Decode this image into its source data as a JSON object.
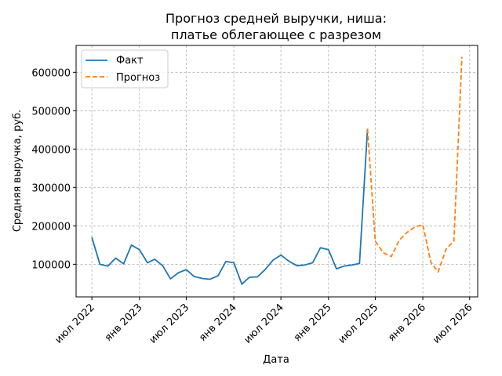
{
  "chart_data": {
    "type": "line",
    "title": [
      "Прогноз средней выручки, ниша:",
      "платье облегающее с разрезом"
    ],
    "xlabel": "Дата",
    "ylabel": "Средняя выручка, руб.",
    "x_ticks": [
      {
        "date": "2022-07-01",
        "label": "июл 2022"
      },
      {
        "date": "2023-01-01",
        "label": "янв 2023"
      },
      {
        "date": "2023-07-01",
        "label": "июл 2023"
      },
      {
        "date": "2024-01-01",
        "label": "янв 2024"
      },
      {
        "date": "2024-07-01",
        "label": "июл 2024"
      },
      {
        "date": "2025-01-01",
        "label": "янв 2025"
      },
      {
        "date": "2025-07-01",
        "label": "июл 2025"
      },
      {
        "date": "2026-01-01",
        "label": "янв 2026"
      },
      {
        "date": "2026-07-01",
        "label": "июл 2026"
      }
    ],
    "y_ticks": [
      100000,
      200000,
      300000,
      400000,
      500000,
      600000
    ],
    "xlim": [
      "2022-05-01",
      "2026-08-01"
    ],
    "ylim": [
      15000,
      670000
    ],
    "grid": true,
    "legend_position": "top-left",
    "colors": {
      "fact": "#1f77b4",
      "forecast": "#ff7f0e",
      "grid": "#b0b0b0"
    },
    "series": [
      {
        "name": "Факт",
        "style": "solid",
        "points": [
          {
            "x": "2022-07-01",
            "y": 170000
          },
          {
            "x": "2022-08-01",
            "y": 100000
          },
          {
            "x": "2022-09-01",
            "y": 95000
          },
          {
            "x": "2022-10-01",
            "y": 116000
          },
          {
            "x": "2022-11-01",
            "y": 101000
          },
          {
            "x": "2022-12-01",
            "y": 150000
          },
          {
            "x": "2023-01-01",
            "y": 138000
          },
          {
            "x": "2023-02-01",
            "y": 104000
          },
          {
            "x": "2023-03-01",
            "y": 113000
          },
          {
            "x": "2023-04-01",
            "y": 96000
          },
          {
            "x": "2023-05-01",
            "y": 62000
          },
          {
            "x": "2023-06-01",
            "y": 78000
          },
          {
            "x": "2023-07-01",
            "y": 86000
          },
          {
            "x": "2023-08-01",
            "y": 68000
          },
          {
            "x": "2023-09-01",
            "y": 63000
          },
          {
            "x": "2023-10-01",
            "y": 61000
          },
          {
            "x": "2023-11-01",
            "y": 70000
          },
          {
            "x": "2023-12-01",
            "y": 107000
          },
          {
            "x": "2024-01-01",
            "y": 104000
          },
          {
            "x": "2024-02-01",
            "y": 48000
          },
          {
            "x": "2024-03-01",
            "y": 66000
          },
          {
            "x": "2024-04-01",
            "y": 67000
          },
          {
            "x": "2024-05-01",
            "y": 86000
          },
          {
            "x": "2024-06-01",
            "y": 111000
          },
          {
            "x": "2024-07-01",
            "y": 124000
          },
          {
            "x": "2024-08-01",
            "y": 108000
          },
          {
            "x": "2024-09-01",
            "y": 96000
          },
          {
            "x": "2024-10-01",
            "y": 98000
          },
          {
            "x": "2024-11-01",
            "y": 104000
          },
          {
            "x": "2024-12-01",
            "y": 143000
          },
          {
            "x": "2025-01-01",
            "y": 138000
          },
          {
            "x": "2025-02-01",
            "y": 88000
          },
          {
            "x": "2025-03-01",
            "y": 95000
          },
          {
            "x": "2025-04-01",
            "y": 98000
          },
          {
            "x": "2025-05-01",
            "y": 102000
          },
          {
            "x": "2025-06-01",
            "y": 453000
          }
        ]
      },
      {
        "name": "Прогноз",
        "style": "dashed",
        "points": [
          {
            "x": "2025-06-01",
            "y": 453000
          },
          {
            "x": "2025-07-01",
            "y": 160000
          },
          {
            "x": "2025-08-01",
            "y": 130000
          },
          {
            "x": "2025-09-01",
            "y": 120000
          },
          {
            "x": "2025-10-01",
            "y": 162000
          },
          {
            "x": "2025-11-01",
            "y": 183000
          },
          {
            "x": "2025-12-01",
            "y": 197000
          },
          {
            "x": "2026-01-01",
            "y": 203000
          },
          {
            "x": "2026-02-01",
            "y": 105000
          },
          {
            "x": "2026-03-01",
            "y": 80000
          },
          {
            "x": "2026-04-01",
            "y": 140000
          },
          {
            "x": "2026-05-01",
            "y": 160000
          },
          {
            "x": "2026-06-01",
            "y": 640000
          }
        ]
      }
    ]
  }
}
